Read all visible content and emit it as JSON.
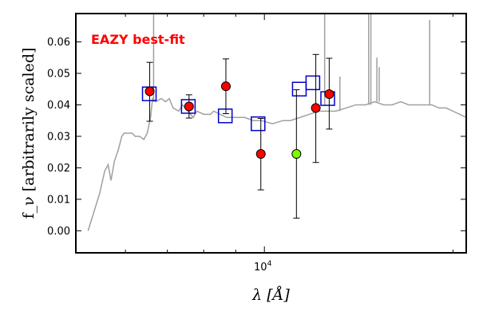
{
  "chart_data": {
    "type": "scatter",
    "title": "",
    "xlabel": "λ [Å]",
    "ylabel": "f_ν [arbitrarily scaled]",
    "xscale": "log",
    "xlim": [
      5000,
      21000
    ],
    "ylim": [
      -0.007,
      0.069
    ],
    "grid": false,
    "annotation": {
      "text": "EAZY best-fit",
      "color": "#ff0000",
      "position": "top-left"
    },
    "y_ticks": [
      {
        "value": 0.0,
        "label": "0.00"
      },
      {
        "value": 0.01,
        "label": "0.01"
      },
      {
        "value": 0.02,
        "label": "0.02"
      },
      {
        "value": 0.03,
        "label": "0.03"
      },
      {
        "value": 0.04,
        "label": "0.04"
      },
      {
        "value": 0.05,
        "label": "0.05"
      },
      {
        "value": 0.06,
        "label": "0.06"
      }
    ],
    "x_major_ticks": [
      {
        "value": 10000,
        "label_base": "10",
        "label_exp": "4"
      }
    ],
    "x_minor_ticks": [
      6000,
      7000,
      8000,
      9000,
      20000
    ],
    "series": [
      {
        "kind": "line",
        "color": "#a0a0a0",
        "points": [
          [
            5230,
            0.0
          ],
          [
            5460,
            0.012
          ],
          [
            5560,
            0.019
          ],
          [
            5630,
            0.021
          ],
          [
            5690,
            0.016
          ],
          [
            5760,
            0.022
          ],
          [
            5850,
            0.026
          ],
          [
            5920,
            0.03
          ],
          [
            5970,
            0.031
          ],
          [
            6030,
            0.031
          ],
          [
            6150,
            0.031
          ],
          [
            6220,
            0.03
          ],
          [
            6320,
            0.03
          ],
          [
            6420,
            0.029
          ],
          [
            6500,
            0.031
          ],
          [
            6580,
            0.036
          ],
          [
            6630,
            0.042
          ],
          [
            6700,
            0.041
          ],
          [
            6850,
            0.042
          ],
          [
            6950,
            0.041
          ],
          [
            7050,
            0.042
          ],
          [
            7150,
            0.039
          ],
          [
            7300,
            0.038
          ],
          [
            7400,
            0.04
          ],
          [
            7550,
            0.038
          ],
          [
            7700,
            0.036
          ],
          [
            7800,
            0.038
          ],
          [
            8000,
            0.037
          ],
          [
            8200,
            0.037
          ],
          [
            8300,
            0.038
          ],
          [
            8500,
            0.037
          ],
          [
            8700,
            0.036
          ],
          [
            9000,
            0.036
          ],
          [
            9300,
            0.036
          ],
          [
            9600,
            0.035
          ],
          [
            9900,
            0.035
          ],
          [
            10300,
            0.034
          ],
          [
            10700,
            0.035
          ],
          [
            11000,
            0.035
          ],
          [
            11400,
            0.036
          ],
          [
            11800,
            0.037
          ],
          [
            12200,
            0.038
          ],
          [
            12600,
            0.038
          ],
          [
            13000,
            0.038
          ],
          [
            13500,
            0.039
          ],
          [
            14000,
            0.04
          ],
          [
            14500,
            0.04
          ],
          [
            15000,
            0.041
          ],
          [
            15500,
            0.04
          ],
          [
            16000,
            0.04
          ],
          [
            16500,
            0.041
          ],
          [
            17000,
            0.04
          ],
          [
            17500,
            0.04
          ],
          [
            18000,
            0.04
          ],
          [
            18500,
            0.04
          ],
          [
            19000,
            0.039
          ],
          [
            19500,
            0.039
          ],
          [
            20000,
            0.038
          ],
          [
            20500,
            0.037
          ],
          [
            21000,
            0.036
          ]
        ]
      },
      {
        "kind": "line-spikes",
        "color": "#a0a0a0",
        "points": [
          [
            6655,
            0.041,
            0.069
          ],
          [
            12480,
            0.04,
            0.069
          ],
          [
            13200,
            0.038,
            0.049
          ],
          [
            14670,
            0.04,
            0.069
          ],
          [
            14790,
            0.04,
            0.069
          ],
          [
            15120,
            0.041,
            0.055
          ],
          [
            15250,
            0.041,
            0.052
          ],
          [
            18360,
            0.04,
            0.067
          ]
        ]
      },
      {
        "kind": "model-photometry",
        "marker": "square",
        "color": "#0000cc",
        "points": [
          [
            6550,
            0.0435
          ],
          [
            7560,
            0.0395
          ],
          [
            8660,
            0.0365
          ],
          [
            9770,
            0.034
          ],
          [
            11370,
            0.045
          ],
          [
            11950,
            0.047
          ],
          [
            12620,
            0.042
          ]
        ]
      },
      {
        "kind": "observed-photometry",
        "marker": "circle",
        "points": [
          {
            "x": 6560,
            "y": 0.0443,
            "yerr_low": 0.0348,
            "yerr_high": 0.0535,
            "color": "#ff0000"
          },
          {
            "x": 7580,
            "y": 0.0395,
            "yerr_low": 0.0358,
            "yerr_high": 0.0432,
            "color": "#ff0000"
          },
          {
            "x": 8680,
            "y": 0.0459,
            "yerr_low": 0.0372,
            "yerr_high": 0.0546,
            "color": "#ff0000"
          },
          {
            "x": 9870,
            "y": 0.0244,
            "yerr_low": 0.013,
            "yerr_high": 0.0357,
            "color": "#ff0000"
          },
          {
            "x": 11250,
            "y": 0.0244,
            "yerr_low": 0.004,
            "yerr_high": 0.0448,
            "color": "#7cfc00"
          },
          {
            "x": 12080,
            "y": 0.039,
            "yerr_low": 0.0217,
            "yerr_high": 0.056,
            "color": "#ff0000"
          },
          {
            "x": 12690,
            "y": 0.0434,
            "yerr_low": 0.0323,
            "yerr_high": 0.0548,
            "color": "#ff0000"
          }
        ]
      }
    ]
  }
}
